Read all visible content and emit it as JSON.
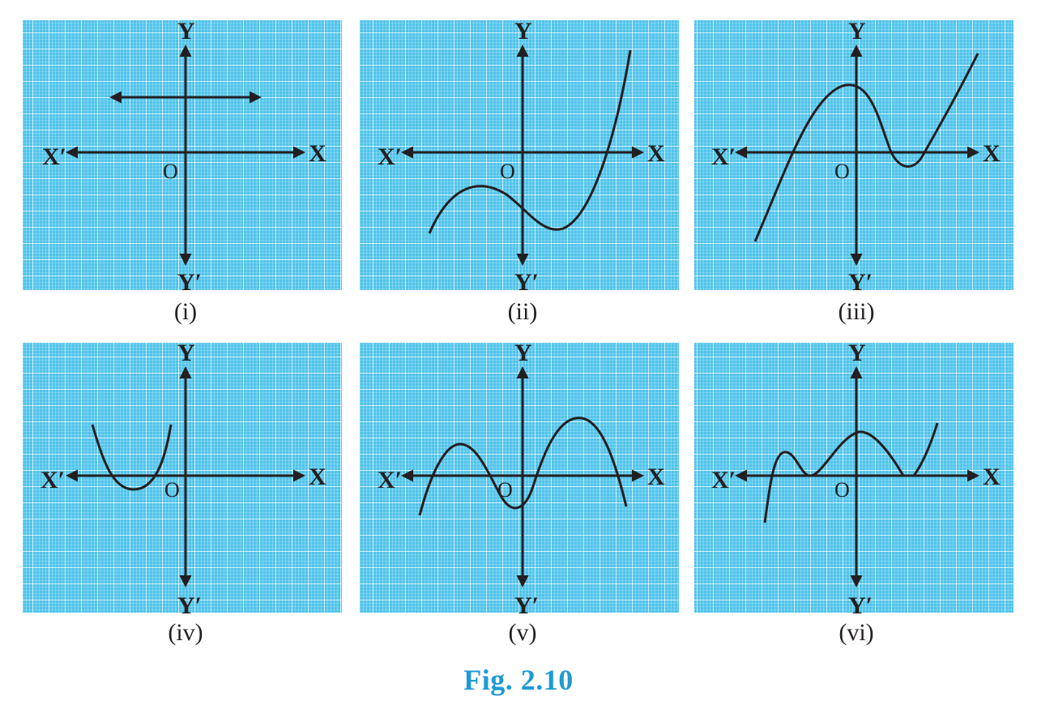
{
  "figure": {
    "caption": "Fig. 2.10",
    "colors": {
      "grid_background": "#4fc3ea",
      "grid_fine": "#e3f6fd",
      "grid_major": "#ffffff",
      "ink": "#231f20",
      "caption": "#1d9ad6"
    },
    "axis_labels": {
      "x_pos": "X",
      "x_neg": "X′",
      "y_pos": "Y",
      "y_neg": "Y′",
      "origin": "O"
    },
    "panels": [
      {
        "label": "(i)",
        "shape": "horizontal line (arrows both ends) above x-axis"
      },
      {
        "label": "(ii)",
        "shape": "cubic curve crossing x-axis once"
      },
      {
        "label": "(iii)",
        "shape": "cubic curve crossing x-axis three times"
      },
      {
        "label": "(iv)",
        "shape": "upward parabola crossing x-axis twice"
      },
      {
        "label": "(v)",
        "shape": "quartic curve crossing x-axis four times"
      },
      {
        "label": "(vi)",
        "shape": "curve touching x-axis at several points"
      }
    ]
  }
}
